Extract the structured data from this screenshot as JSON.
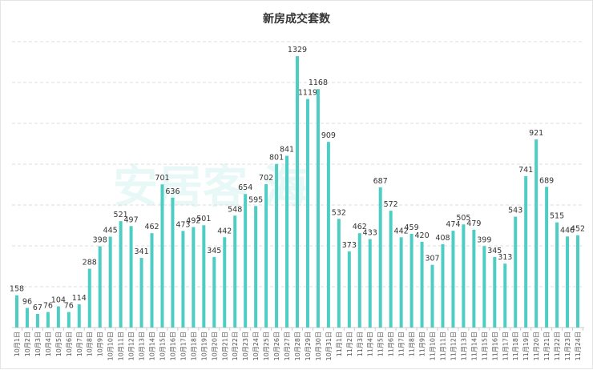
{
  "chart_data": {
    "type": "bar",
    "title": "新房成交套数",
    "xlabel": "",
    "ylabel": "",
    "ylim": [
      0,
      1400
    ],
    "grid": true,
    "bar_color": "#4ecdc4",
    "watermark": "安居客 海",
    "categories": [
      "10月1日",
      "10月2日",
      "10月3日",
      "10月4日",
      "10月5日",
      "10月6日",
      "10月7日",
      "10月8日",
      "10月9日",
      "10月10日",
      "10月11日",
      "10月12日",
      "10月13日",
      "10月14日",
      "10月15日",
      "10月16日",
      "10月17日",
      "10月18日",
      "10月19日",
      "10月20日",
      "10月21日",
      "10月22日",
      "10月23日",
      "10月24日",
      "10月25日",
      "10月26日",
      "10月27日",
      "10月28日",
      "10月29日",
      "10月30日",
      "10月31日",
      "11月1日",
      "11月2日",
      "11月3日",
      "11月4日",
      "11月5日",
      "11月6日",
      "11月7日",
      "11月8日",
      "11月9日",
      "11月10日",
      "11月11日",
      "11月12日",
      "11月13日",
      "11月14日",
      "11月15日",
      "11月16日",
      "11月17日",
      "11月18日",
      "11月19日",
      "11月20日",
      "11月21日",
      "11月22日",
      "11月23日",
      "11月24日"
    ],
    "values": [
      158,
      96,
      67,
      76,
      104,
      76,
      114,
      288,
      398,
      445,
      521,
      497,
      341,
      462,
      701,
      636,
      473,
      492,
      501,
      345,
      442,
      548,
      654,
      595,
      702,
      801,
      841,
      1329,
      1119,
      1168,
      909,
      532,
      373,
      462,
      433,
      687,
      572,
      442,
      459,
      420,
      307,
      408,
      474,
      505,
      479,
      399,
      345,
      313,
      543,
      741,
      921,
      689,
      515,
      446,
      452
    ]
  }
}
